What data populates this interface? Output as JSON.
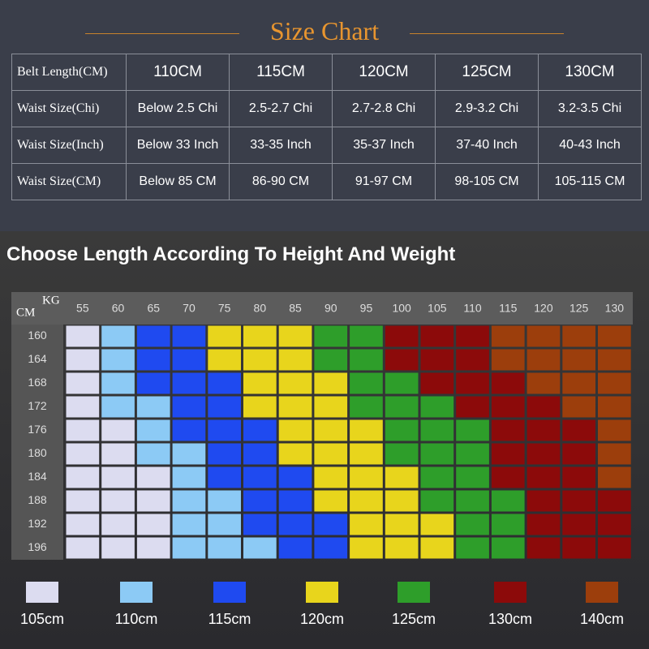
{
  "header": {
    "title": "Size Chart"
  },
  "table": {
    "rows": [
      [
        "Belt Length(CM)",
        "110CM",
        "115CM",
        "120CM",
        "125CM",
        "130CM"
      ],
      [
        "Waist Size(Chi)",
        "Below 2.5 Chi",
        "2.5-2.7 Chi",
        "2.7-2.8 Chi",
        "2.9-3.2 Chi",
        "3.2-3.5 Chi"
      ],
      [
        "Waist Size(Inch)",
        "Below 33 Inch",
        "33-35 Inch",
        "35-37 Inch",
        "37-40 Inch",
        "40-43 Inch"
      ],
      [
        "Waist Size(CM)",
        "Below 85 CM",
        "86-90 CM",
        "91-97 CM",
        "98-105 CM",
        "105-115 CM"
      ]
    ]
  },
  "grid": {
    "title": "Choose Length According To Height And Weight",
    "row_unit": "CM",
    "col_unit": "KG",
    "cols": [
      55,
      60,
      65,
      70,
      75,
      80,
      85,
      90,
      95,
      100,
      105,
      110,
      115,
      120,
      125,
      130
    ],
    "rows": [
      160,
      164,
      168,
      172,
      176,
      180,
      184,
      188,
      192,
      196
    ],
    "sizes": [
      {
        "label": "105cm",
        "color": "#dcdcf0"
      },
      {
        "label": "110cm",
        "color": "#8ccaf5"
      },
      {
        "label": "115cm",
        "color": "#1f4af0"
      },
      {
        "label": "120cm",
        "color": "#e8d51c"
      },
      {
        "label": "125cm",
        "color": "#2e9e2a"
      },
      {
        "label": "130cm",
        "color": "#8c0a0a"
      },
      {
        "label": "140cm",
        "color": "#9c3e0c"
      }
    ],
    "cells": [
      [
        0,
        1,
        2,
        2,
        3,
        3,
        3,
        4,
        4,
        5,
        5,
        5,
        6,
        6,
        6,
        6
      ],
      [
        0,
        1,
        2,
        2,
        3,
        3,
        3,
        4,
        4,
        5,
        5,
        5,
        6,
        6,
        6,
        6
      ],
      [
        0,
        1,
        2,
        2,
        2,
        3,
        3,
        3,
        4,
        4,
        5,
        5,
        5,
        6,
        6,
        6
      ],
      [
        0,
        1,
        1,
        2,
        2,
        3,
        3,
        3,
        4,
        4,
        4,
        5,
        5,
        5,
        6,
        6
      ],
      [
        0,
        0,
        1,
        2,
        2,
        2,
        3,
        3,
        3,
        4,
        4,
        4,
        5,
        5,
        5,
        6
      ],
      [
        0,
        0,
        1,
        1,
        2,
        2,
        3,
        3,
        3,
        4,
        4,
        4,
        5,
        5,
        5,
        6
      ],
      [
        0,
        0,
        0,
        1,
        2,
        2,
        2,
        3,
        3,
        3,
        4,
        4,
        5,
        5,
        5,
        6
      ],
      [
        0,
        0,
        0,
        1,
        1,
        2,
        2,
        3,
        3,
        3,
        4,
        4,
        4,
        5,
        5,
        5
      ],
      [
        0,
        0,
        0,
        1,
        1,
        2,
        2,
        2,
        3,
        3,
        3,
        4,
        4,
        5,
        5,
        5
      ],
      [
        0,
        0,
        0,
        1,
        1,
        1,
        2,
        2,
        3,
        3,
        3,
        4,
        4,
        5,
        5,
        5
      ]
    ]
  }
}
